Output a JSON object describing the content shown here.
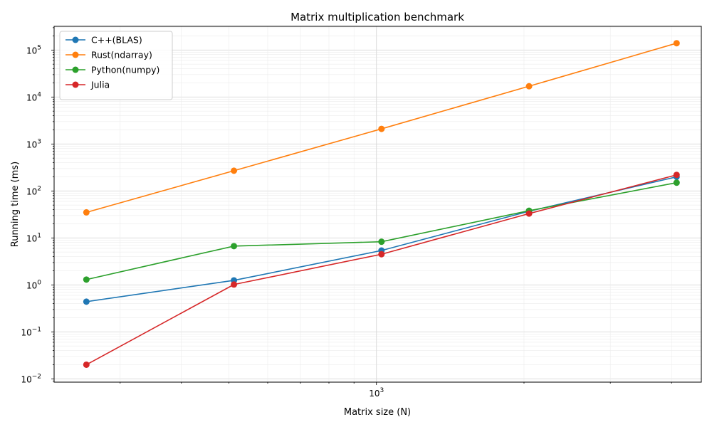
{
  "chart_data": {
    "type": "line",
    "title": "Matrix multiplication benchmark",
    "xlabel": "Matrix size (N)",
    "ylabel": "Running time (ms)",
    "xscale": "log",
    "yscale": "log",
    "xlim": [
      220,
      4600
    ],
    "ylim": [
      0.0085,
      320000
    ],
    "grid": true,
    "legend_position": "top-left",
    "x": [
      256,
      512,
      1024,
      2048,
      4096
    ],
    "x_tick_major": [
      {
        "value": 1000,
        "label": "10",
        "exp": "3"
      }
    ],
    "x_tick_minor": [
      300,
      400,
      500,
      600,
      700,
      800,
      900,
      2000,
      3000,
      4000
    ],
    "y_ticks": [
      {
        "value": 0.01,
        "label": "10",
        "exp": "−2"
      },
      {
        "value": 0.1,
        "label": "10",
        "exp": "−1"
      },
      {
        "value": 1,
        "label": "10",
        "exp": "0"
      },
      {
        "value": 10,
        "label": "10",
        "exp": "1"
      },
      {
        "value": 100,
        "label": "10",
        "exp": "2"
      },
      {
        "value": 1000,
        "label": "10",
        "exp": "3"
      },
      {
        "value": 10000,
        "label": "10",
        "exp": "4"
      },
      {
        "value": 100000,
        "label": "10",
        "exp": "5"
      }
    ],
    "series": [
      {
        "name": "C++(BLAS)",
        "color": "#1f77b4",
        "values": [
          0.44,
          1.25,
          5.4,
          37,
          200
        ]
      },
      {
        "name": "Rust(ndarray)",
        "color": "#ff7f0e",
        "values": [
          35,
          270,
          2100,
          17000,
          140000
        ]
      },
      {
        "name": "Python(numpy)",
        "color": "#2ca02c",
        "values": [
          1.3,
          6.7,
          8.3,
          38,
          150
        ]
      },
      {
        "name": "Julia",
        "color": "#d62728",
        "values": [
          0.02,
          1.02,
          4.5,
          33,
          220
        ]
      }
    ]
  }
}
